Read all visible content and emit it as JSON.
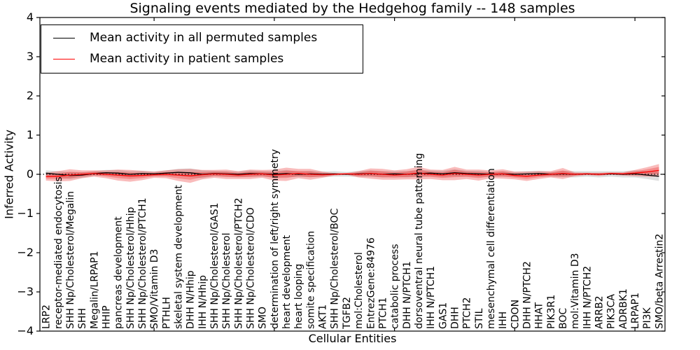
{
  "chart_data": {
    "type": "line",
    "title": "Signaling events mediated by the Hedgehog family -- 148 samples",
    "xlabel": "Cellular Entities",
    "ylabel": "Inferred Activity",
    "ylim": [
      -4,
      4
    ],
    "ytick_labels": [
      "4",
      "3",
      "2",
      "1",
      "0",
      "−1",
      "−2",
      "−3",
      "−4"
    ],
    "ytick_values": [
      4,
      3,
      2,
      1,
      0,
      -1,
      -2,
      -3,
      -4
    ],
    "x_major_tick_indices": [
      9,
      19,
      29,
      39,
      49
    ],
    "grid": false,
    "legend_position": "upper-left",
    "sample_count_in_title": "148 samples",
    "categories": [
      "LRP2",
      "receptor-mediated endocytosis",
      "SHH Np/Cholesterol/Megalin",
      "SHH",
      "Megalin/LRPAP1",
      "HHIP",
      "pancreas development",
      "SHH Np/Cholesterol/Hhip",
      "SHH Np/Cholesterol/PTCH1",
      "SMO/Vitamin D3",
      "PTHLH",
      "skeletal system development",
      "DHH N/Hhip",
      "IHH N/Hhip",
      "SHH Np/Cholesterol/GAS1",
      "SHH Np/Cholesterol",
      "SHH Np/Cholesterol/PTCH2",
      "SHH Np/Cholesterol/CDO",
      "SMO",
      "determination of left/right symmetry",
      "heart development",
      "heart looping",
      "somite specification",
      "AKT1",
      "SHH Np/Cholesterol/BOC",
      "TGFB2",
      "mol:Cholesterol",
      "EntrezGene:84976",
      "PTCH1",
      "catabolic process",
      "DHH N/PTCH1",
      "dorsoventral neural tube patterning",
      "IHH N/PTCH1",
      "GAS1",
      "DHH",
      "PTCH2",
      "STIL",
      "mesenchymal cell differentiation",
      "IHH",
      "CDON",
      "DHH N/PTCH2",
      "HHAT",
      "PIK3R1",
      "BOC",
      "mol:Vitamin D3",
      "IHH N/PTCH2",
      "ARRB2",
      "PIK3CA",
      "ADRBK1",
      "LRPAP1",
      "PI3K",
      "SMO/beta Arrestin2"
    ],
    "zero_line": {
      "y": 0,
      "style": "dotted",
      "color": "#000000"
    },
    "series": [
      {
        "name": "Mean activity in all permuted samples",
        "color": "#000000",
        "band_color": "rgba(110,110,110,0.22)",
        "values": [
          0.03,
          0.0,
          -0.03,
          -0.02,
          0.02,
          0.04,
          0.03,
          0.0,
          0.02,
          0.01,
          0.03,
          0.05,
          0.04,
          0.0,
          0.02,
          0.01,
          0.0,
          0.02,
          0.01,
          0.0,
          0.02,
          0.0,
          0.01,
          0.0,
          0.01,
          0.0,
          0.01,
          0.02,
          0.0,
          0.01,
          0.0,
          0.02,
          0.03,
          0.01,
          0.04,
          0.02,
          0.01,
          0.0,
          0.01,
          0.0,
          0.01,
          0.02,
          0.0,
          0.01,
          0.0,
          0.01,
          0.0,
          0.01,
          0.0,
          0.01,
          -0.02,
          -0.05
        ],
        "band_halfwidth": [
          0.07,
          0.08,
          0.09,
          0.07,
          0.06,
          0.07,
          0.08,
          0.08,
          0.07,
          0.06,
          0.07,
          0.09,
          0.11,
          0.1,
          0.07,
          0.07,
          0.07,
          0.08,
          0.07,
          0.08,
          0.09,
          0.07,
          0.08,
          0.07,
          0.07,
          0.06,
          0.07,
          0.08,
          0.08,
          0.07,
          0.08,
          0.09,
          0.07,
          0.08,
          0.09,
          0.07,
          0.08,
          0.06,
          0.07,
          0.06,
          0.07,
          0.07,
          0.06,
          0.08,
          0.08,
          0.07,
          0.08,
          0.07,
          0.08,
          0.09,
          0.1,
          0.12
        ]
      },
      {
        "name": "Mean activity in patient samples",
        "color": "#ff0000",
        "band_color": "rgba(235,30,30,0.30)",
        "values": [
          -0.06,
          -0.05,
          -0.02,
          0.0,
          0.02,
          0.0,
          -0.02,
          -0.04,
          -0.03,
          -0.01,
          0.0,
          -0.02,
          -0.04,
          -0.01,
          0.01,
          0.0,
          -0.02,
          0.0,
          0.01,
          -0.02,
          0.0,
          0.02,
          0.0,
          -0.01,
          0.0,
          0.01,
          0.0,
          0.02,
          0.0,
          -0.02,
          0.0,
          0.03,
          0.0,
          -0.02,
          0.02,
          0.0,
          -0.02,
          0.0,
          0.01,
          -0.03,
          -0.05,
          -0.02,
          0.0,
          0.02,
          0.0,
          0.01,
          0.0,
          0.02,
          0.01,
          0.03,
          0.06,
          0.1
        ],
        "band_halfwidth": [
          0.1,
          0.13,
          0.15,
          0.1,
          0.08,
          0.1,
          0.14,
          0.15,
          0.12,
          0.08,
          0.1,
          0.15,
          0.18,
          0.12,
          0.1,
          0.12,
          0.1,
          0.12,
          0.1,
          0.14,
          0.17,
          0.12,
          0.14,
          0.08,
          0.03,
          0.02,
          0.08,
          0.13,
          0.14,
          0.12,
          0.13,
          0.16,
          0.12,
          0.13,
          0.17,
          0.12,
          0.14,
          0.1,
          0.12,
          0.1,
          0.12,
          0.1,
          0.08,
          0.14,
          0.05,
          0.03,
          0.04,
          0.03,
          0.04,
          0.08,
          0.12,
          0.16
        ]
      }
    ]
  },
  "legend": {
    "entries": [
      {
        "label": "Mean activity in all permuted samples",
        "color": "#000000"
      },
      {
        "label": "Mean activity in patient samples",
        "color": "#ff0000"
      }
    ]
  }
}
